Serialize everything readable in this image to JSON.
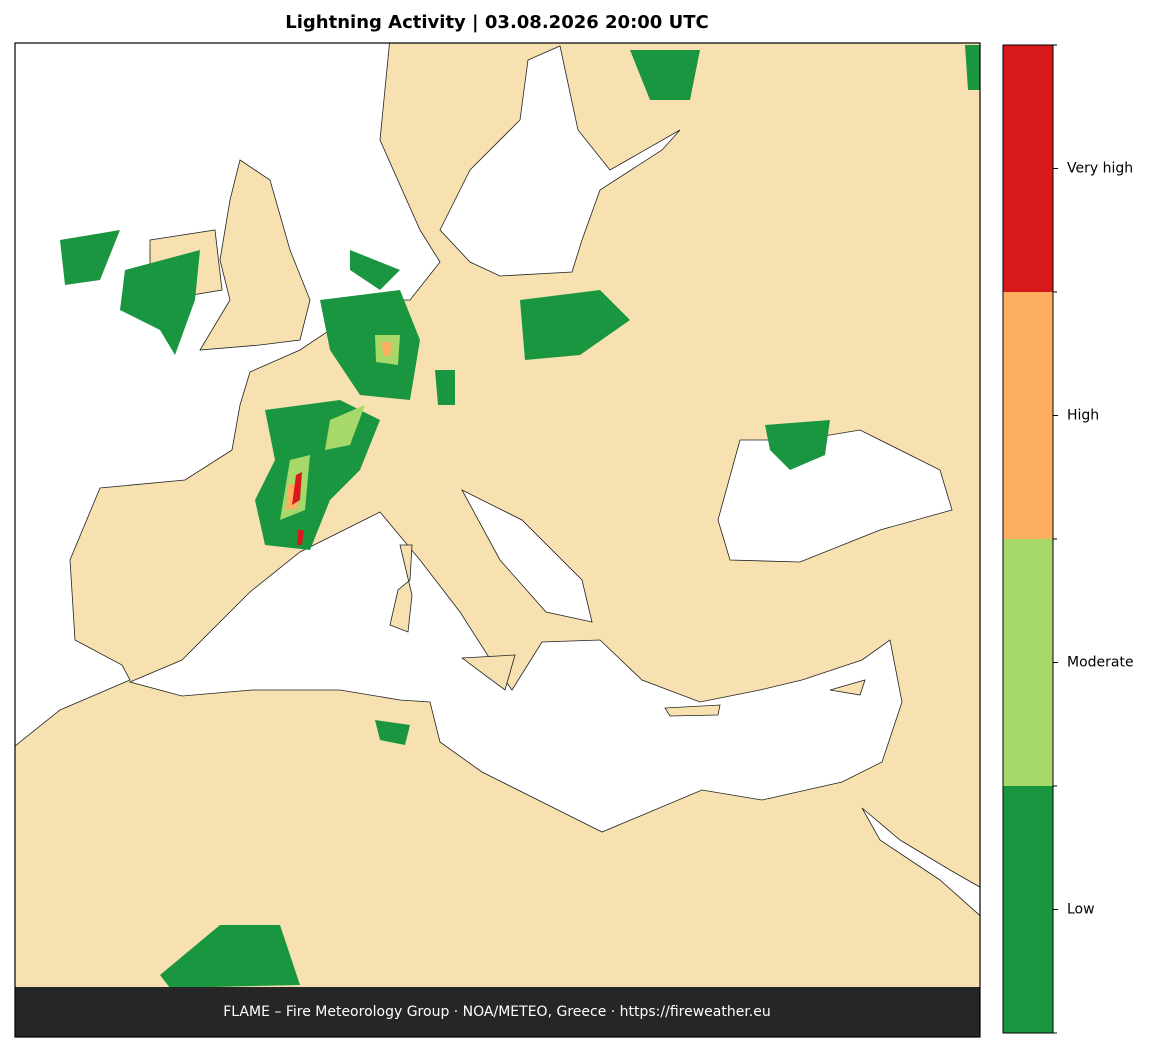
{
  "header": {
    "title": "Lightning Activity  |  03.08.2026 20:00 UTC"
  },
  "legend": {
    "items": [
      {
        "label": "Low",
        "color": "#1a9641"
      },
      {
        "label": "Moderate",
        "color": "#a6d96a"
      },
      {
        "label": "High",
        "color": "#fdae61"
      },
      {
        "label": "Very high",
        "color": "#d7191c"
      }
    ]
  },
  "footer": {
    "text": "FLAME – Fire Meteorology Group · NOA/METEO, Greece · https://fireweather.eu"
  }
}
